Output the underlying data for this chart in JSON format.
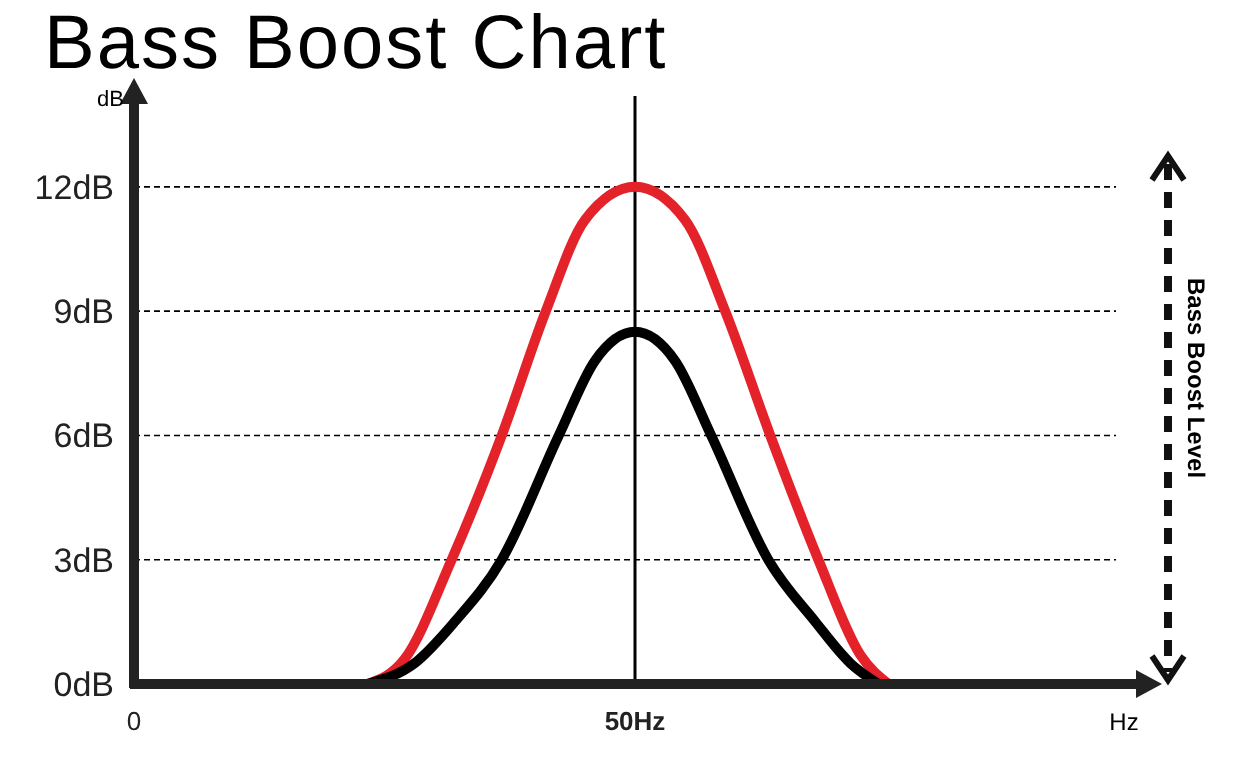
{
  "chart_data": {
    "type": "line",
    "title": "Bass Boost Chart",
    "xlabel": "Hz",
    "ylabel": "dB",
    "xlim": [
      0,
      100
    ],
    "xticks": [
      0,
      {
        "value": 50,
        "label": "50Hz"
      }
    ],
    "ylim": [
      0,
      14
    ],
    "yticks": [
      {
        "value": 0,
        "label": "0dB"
      },
      {
        "value": 3,
        "label": "3dB"
      },
      {
        "value": 6,
        "label": "6dB"
      },
      {
        "value": 9,
        "label": "9dB"
      },
      {
        "value": 12,
        "label": "12dB"
      }
    ],
    "grid": "y",
    "marker": "none",
    "line_style": "solid",
    "ref_lines": [
      {
        "axis": "x",
        "value": 50,
        "color": "#000000"
      }
    ],
    "annotations": [
      "Bass Boost Level"
    ],
    "series": [
      {
        "color": "#e4222a",
        "x": [
          23.3,
          27,
          31.7,
          36.7,
          41.1,
          45,
          50,
          55,
          59,
          63.5,
          68.3,
          72.5,
          75.3
        ],
        "values": [
          0,
          0.6,
          3,
          6,
          9,
          11.2,
          12,
          11.2,
          9,
          6,
          3,
          0.7,
          0
        ]
      },
      {
        "color": "#000000",
        "x": [
          23.3,
          28,
          32,
          36.7,
          42.4,
          46,
          50,
          54,
          57.6,
          63.3,
          68,
          71.5,
          74.3
        ],
        "values": [
          0,
          0.5,
          1.5,
          3,
          6,
          7.8,
          8.5,
          7.8,
          6,
          3,
          1.5,
          0.5,
          0
        ]
      }
    ]
  }
}
